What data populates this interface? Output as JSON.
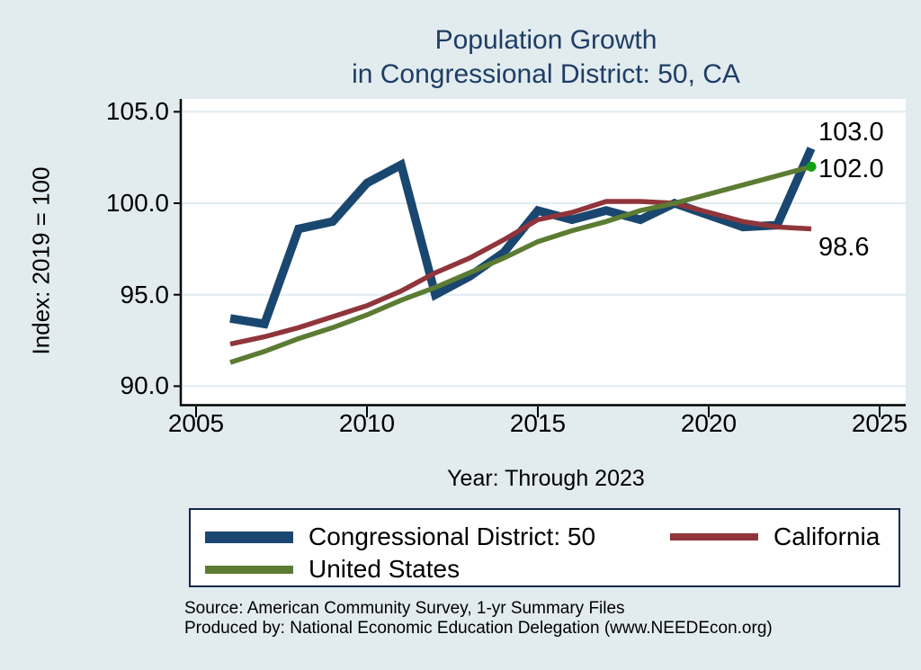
{
  "title": {
    "line1": "Population Growth",
    "line2": "in Congressional District: 50, CA"
  },
  "y_axis": {
    "title": "Index: 2019 = 100",
    "ticks": [
      "105.0",
      "100.0",
      "95.0",
      "90.0"
    ]
  },
  "x_axis": {
    "label": "Year: Through 2023",
    "ticks": [
      "2005",
      "2010",
      "2015",
      "2020",
      "2025"
    ]
  },
  "end_labels": [
    "103.0",
    "102.0",
    "98.6"
  ],
  "legend": [
    {
      "label": "Congressional District: 50",
      "color": "#1a476f"
    },
    {
      "label": "California",
      "color": "#90353b"
    },
    {
      "label": "United States",
      "color": "#5c7b33"
    }
  ],
  "footer": {
    "line1": "Source: American Community Survey, 1-yr Summary Files",
    "line2": "Produced by: National Economic Education Delegation (www.NEEDEcon.org)"
  },
  "colors": {
    "background": "#e2ebee",
    "plot_background": "#ffffff",
    "gridline": "#dfecf0",
    "axis": "#000000",
    "title_text": "#1e3d66",
    "district_line": "#1a476f",
    "california_line": "#90353b",
    "us_line": "#5c7b33",
    "us_end_marker": "#12a012"
  },
  "chart_data": {
    "type": "line",
    "title": "Population Growth in Congressional District: 50, CA",
    "xlabel": "Year: Through 2023",
    "ylabel": "Index: 2019 = 100",
    "xlim": [
      2004.5,
      2025.75
    ],
    "ylim": [
      88.9,
      105.7
    ],
    "grid": true,
    "gridlines_y": [
      90,
      95,
      100,
      105
    ],
    "legend_position": "bottom",
    "x": [
      2006,
      2007,
      2008,
      2009,
      2010,
      2011,
      2012,
      2013,
      2014,
      2015,
      2016,
      2017,
      2018,
      2019,
      2021,
      2022,
      2023
    ],
    "series": [
      {
        "name": "Congressional District: 50",
        "color": "#1a476f",
        "values": [
          93.7,
          93.4,
          98.6,
          99.0,
          101.1,
          102.1,
          95.0,
          96.0,
          97.3,
          99.6,
          99.1,
          99.6,
          99.1,
          100.0,
          98.7,
          98.8,
          103.0
        ],
        "end_label": "103.0"
      },
      {
        "name": "California",
        "color": "#90353b",
        "values": [
          92.3,
          92.7,
          93.2,
          93.8,
          94.4,
          95.2,
          96.2,
          97.0,
          98.0,
          99.1,
          99.5,
          100.1,
          100.1,
          100.0,
          99.0,
          98.7,
          98.6
        ],
        "end_label": "98.6"
      },
      {
        "name": "United States",
        "color": "#5c7b33",
        "values": [
          91.3,
          91.9,
          92.6,
          93.2,
          93.9,
          94.7,
          95.4,
          96.2,
          97.0,
          97.9,
          98.5,
          99.0,
          99.6,
          100.0,
          101.0,
          101.5,
          102.0
        ],
        "end_label": "102.0",
        "marker": "dot",
        "marker_color": "#12a012"
      }
    ]
  }
}
